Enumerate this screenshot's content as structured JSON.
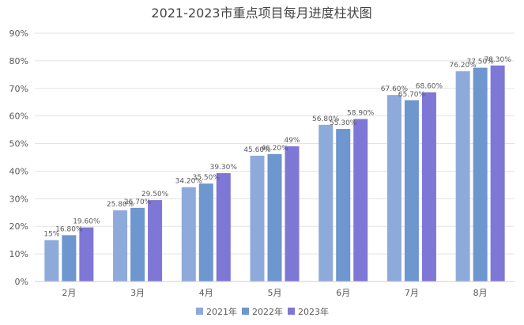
{
  "chart_data": {
    "type": "bar",
    "title": "2021-2023市重点项目每月进度柱状图",
    "categories": [
      "2月",
      "3月",
      "4月",
      "5月",
      "6月",
      "7月",
      "8月"
    ],
    "series": [
      {
        "name": "2021年",
        "color": "#8EAADB",
        "values": [
          15,
          25.8,
          34.2,
          45.6,
          56.8,
          67.6,
          76.2
        ],
        "labels": [
          "15%",
          "25.80%",
          "34.20%",
          "45.60%",
          "56.80%",
          "67.60%",
          "76.20%"
        ]
      },
      {
        "name": "2022年",
        "color": "#6E96CF",
        "values": [
          16.8,
          26.7,
          35.5,
          46.2,
          55.3,
          65.7,
          77.5
        ],
        "labels": [
          "16.80%",
          "26.70%",
          "35.50%",
          "46.20%",
          "55.30%",
          "65.70%",
          "77.50%"
        ]
      },
      {
        "name": "2023年",
        "color": "#7F77D6",
        "values": [
          19.6,
          29.5,
          39.3,
          49,
          58.9,
          68.6,
          78.3
        ],
        "labels": [
          "19.60%",
          "29.50%",
          "39.30%",
          "49%",
          "58.90%",
          "68.60%",
          "78.30%"
        ]
      }
    ],
    "ylim": [
      0,
      90
    ],
    "yticks": [
      "0%",
      "10%",
      "20%",
      "30%",
      "40%",
      "50%",
      "60%",
      "70%",
      "80%",
      "90%"
    ],
    "grid": true,
    "legend": "bottom"
  }
}
